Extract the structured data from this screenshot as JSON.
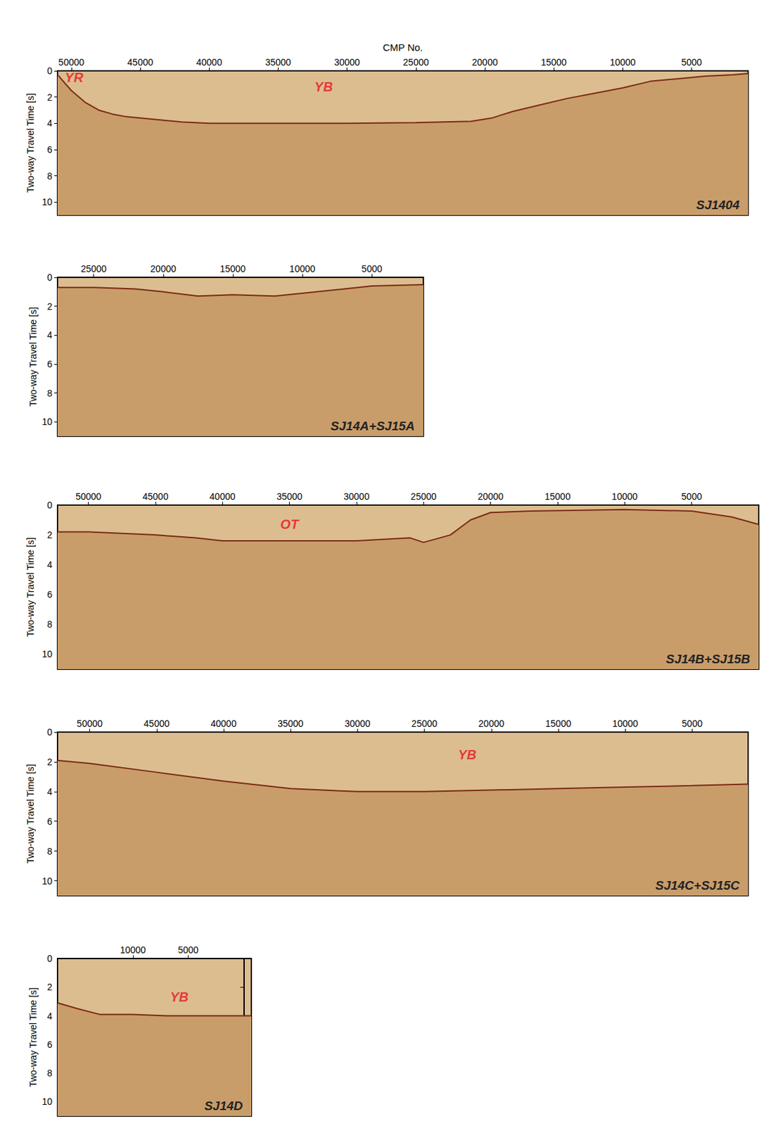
{
  "chart_data": [
    {
      "type": "area",
      "title": "SJ1404",
      "x_label": "CMP No.",
      "y_label": "Two-way Travel Time [s]",
      "xlim": [
        51000,
        900
      ],
      "xticks": [
        50000,
        45000,
        40000,
        35000,
        30000,
        25000,
        20000,
        15000,
        10000,
        5000
      ],
      "ylim": [
        0,
        11
      ],
      "yticks": [
        0,
        2,
        4,
        6,
        8,
        10
      ],
      "x": [
        51000,
        50000,
        49000,
        48000,
        47000,
        46000,
        44000,
        42000,
        40000,
        35000,
        30000,
        25000,
        21000,
        19500,
        18000,
        16000,
        14000,
        12000,
        10000,
        8000,
        6000,
        4000,
        2000,
        900
      ],
      "values": [
        0.3,
        1.5,
        2.4,
        3.0,
        3.3,
        3.5,
        3.7,
        3.9,
        4.0,
        4.0,
        4.0,
        3.95,
        3.85,
        3.6,
        3.1,
        2.6,
        2.1,
        1.7,
        1.3,
        0.8,
        0.6,
        0.4,
        0.3,
        0.2
      ],
      "color": "#7a2a12",
      "annotations": [
        {
          "text": "YR",
          "x": 49800,
          "y": 0.5,
          "color": "#e8141c"
        },
        {
          "text": "YB",
          "x": 31700,
          "y": 1.2,
          "color": "#e8141c"
        }
      ]
    },
    {
      "type": "area",
      "title": "SJ14A+SJ15A",
      "y_label": "Two-way Travel Time [s]",
      "xlim": [
        27600,
        1300
      ],
      "xticks": [
        25000,
        20000,
        15000,
        10000,
        5000
      ],
      "ylim": [
        0,
        11
      ],
      "yticks": [
        0,
        2,
        4,
        6,
        8,
        10
      ],
      "x": [
        27600,
        25000,
        22000,
        20000,
        17500,
        15000,
        12000,
        10000,
        7000,
        5000,
        1300
      ],
      "values": [
        0.7,
        0.7,
        0.8,
        1.0,
        1.3,
        1.2,
        1.3,
        1.1,
        0.8,
        0.6,
        0.5
      ],
      "color": "#7a2a12",
      "annotations": []
    },
    {
      "type": "area",
      "title": "SJ14B+SJ15B",
      "y_label": "Two-way Travel Time [s]",
      "xlim": [
        52300,
        0
      ],
      "xticks": [
        50000,
        45000,
        40000,
        35000,
        30000,
        25000,
        20000,
        15000,
        10000,
        5000
      ],
      "ylim": [
        0,
        11
      ],
      "yticks": [
        0,
        2,
        4,
        6,
        8,
        10
      ],
      "x": [
        52300,
        50000,
        45000,
        42000,
        40000,
        35000,
        30000,
        26000,
        25000,
        23000,
        21500,
        20000,
        17000,
        10000,
        5000,
        2000,
        0
      ],
      "values": [
        1.8,
        1.8,
        2.0,
        2.2,
        2.4,
        2.4,
        2.4,
        2.2,
        2.5,
        2.0,
        1.0,
        0.5,
        0.4,
        0.3,
        0.4,
        0.8,
        1.3
      ],
      "color": "#7a2a12",
      "annotations": [
        {
          "text": "OT",
          "x": 35000,
          "y": 1.3,
          "color": "#e8141c"
        }
      ]
    },
    {
      "type": "area",
      "title": "SJ14C+SJ15C",
      "y_label": "Two-way Travel Time [s]",
      "xlim": [
        52400,
        820
      ],
      "xticks": [
        50000,
        45000,
        40000,
        35000,
        30000,
        25000,
        20000,
        15000,
        10000,
        5000
      ],
      "ylim": [
        0,
        11
      ],
      "yticks": [
        0,
        2,
        4,
        6,
        8,
        10
      ],
      "x": [
        52400,
        50000,
        45000,
        40000,
        35000,
        30000,
        25000,
        20000,
        15000,
        10000,
        5000,
        820
      ],
      "values": [
        1.9,
        2.1,
        2.7,
        3.3,
        3.8,
        4.0,
        4.0,
        3.9,
        3.8,
        3.7,
        3.6,
        3.5
      ],
      "color": "#7a2a12",
      "annotations": [
        {
          "text": "YB",
          "x": 21800,
          "y": 1.5,
          "color": "#e8141c"
        }
      ]
    },
    {
      "type": "area",
      "title": "SJ14D",
      "y_label": "Two-way Travel Time [s]",
      "xlim": [
        16800,
        -700
      ],
      "xticks": [
        10000,
        5000
      ],
      "ylim": [
        0,
        11
      ],
      "yticks": [
        0,
        2,
        4,
        6,
        8,
        10
      ],
      "x": [
        16800,
        15000,
        13000,
        10000,
        7000,
        5000,
        2000,
        -700
      ],
      "values": [
        3.1,
        3.5,
        3.9,
        3.9,
        4.0,
        4.0,
        4.0,
        4.0
      ],
      "color": "#7a2a12",
      "annotations": [
        {
          "text": "YB",
          "x": 5800,
          "y": 2.7,
          "color": "#e8141c"
        }
      ]
    }
  ]
}
